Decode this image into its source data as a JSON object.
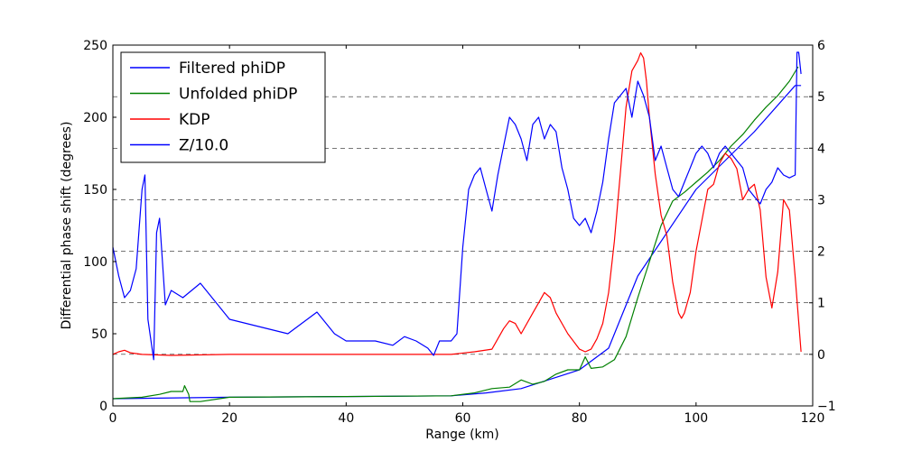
{
  "chart_data": {
    "type": "line",
    "xlabel": "Range (km)",
    "ylabel": "Differential phase shift (degrees)",
    "xlim": [
      0,
      120
    ],
    "ylim": [
      0,
      250
    ],
    "y2lim": [
      -1,
      6
    ],
    "xticks": [
      "0",
      "20",
      "40",
      "60",
      "80",
      "100",
      "120"
    ],
    "yticks": [
      "0",
      "50",
      "100",
      "150",
      "200",
      "250"
    ],
    "y2ticks": [
      "−1",
      "0",
      "1",
      "2",
      "3",
      "4",
      "5",
      "6"
    ],
    "grid": "horizontal dashed lines at right-axis ticks",
    "legend_position": "top-left",
    "legend": [
      "Filtered phiDP",
      "Unfolded phiDP",
      "KDP",
      "Z/10.0"
    ],
    "series": [
      {
        "name": "Filtered phiDP",
        "axis": "left",
        "color": "#0000ff",
        "x": [
          0,
          20,
          40,
          58,
          64,
          70,
          80,
          85,
          90,
          100,
          110,
          117,
          117.5,
          118
        ],
        "y": [
          5,
          6,
          6.5,
          7,
          9,
          12,
          25,
          40,
          90,
          150,
          190,
          222,
          222,
          222
        ]
      },
      {
        "name": "Unfolded phiDP",
        "axis": "left",
        "color": "#008000",
        "x": [
          0,
          5,
          8,
          10,
          12,
          12.3,
          13,
          13.2,
          15,
          20,
          40,
          58,
          62,
          65,
          68,
          70,
          72,
          74,
          76,
          78,
          80,
          81,
          82,
          84,
          86,
          88,
          90,
          92,
          94,
          96,
          98,
          100,
          102,
          104,
          106,
          108,
          110,
          112,
          114,
          116,
          117.5
        ],
        "y": [
          5,
          6,
          8,
          10,
          10,
          14,
          8,
          3,
          3,
          6,
          6.5,
          7,
          9,
          12,
          13,
          18,
          15,
          17,
          22,
          25,
          25,
          34,
          26,
          27,
          32,
          48,
          75,
          100,
          125,
          142,
          148,
          155,
          162,
          170,
          180,
          188,
          198,
          207,
          215,
          225,
          235
        ]
      },
      {
        "name": "KDP",
        "axis": "right",
        "color": "#ff0000",
        "x": [
          0,
          1,
          2,
          3,
          5,
          10,
          20,
          40,
          58,
          62,
          65,
          67,
          68,
          69,
          70,
          72,
          73,
          74,
          75,
          76,
          78,
          80,
          81,
          82,
          83,
          84,
          85,
          86,
          87,
          88,
          89,
          90,
          90.5,
          91,
          91.5,
          92,
          93,
          94,
          95,
          96,
          97,
          97.5,
          98,
          99,
          100,
          101,
          102,
          103,
          104,
          105,
          106,
          107,
          108,
          109,
          110,
          111,
          112,
          113,
          114,
          115,
          116,
          117,
          118
        ],
        "y": [
          0,
          0.05,
          0.08,
          0.03,
          0,
          -0.02,
          0,
          0,
          0,
          0.05,
          0.1,
          0.5,
          0.65,
          0.6,
          0.4,
          0.8,
          1.0,
          1.2,
          1.1,
          0.8,
          0.4,
          0.1,
          0.05,
          0.1,
          0.3,
          0.6,
          1.2,
          2.2,
          3.5,
          4.8,
          5.5,
          5.7,
          5.85,
          5.75,
          5.3,
          4.6,
          3.5,
          2.7,
          2.3,
          1.4,
          0.8,
          0.7,
          0.8,
          1.2,
          2.0,
          2.6,
          3.2,
          3.3,
          3.7,
          3.9,
          3.8,
          3.6,
          3.0,
          3.2,
          3.3,
          2.8,
          1.5,
          0.9,
          1.6,
          3.0,
          2.8,
          1.5,
          0.05
        ]
      },
      {
        "name": "Z/10.0",
        "axis": "left",
        "color": "#0000ff",
        "x": [
          0,
          1,
          2,
          3,
          4,
          5,
          5.5,
          6,
          7,
          7.5,
          8,
          9,
          10,
          12,
          15,
          18,
          20,
          25,
          30,
          35,
          38,
          40,
          45,
          48,
          50,
          52,
          54,
          55,
          56,
          58,
          59,
          60,
          61,
          62,
          63,
          64,
          65,
          66,
          67,
          68,
          69,
          70,
          71,
          72,
          73,
          74,
          75,
          76,
          77,
          78,
          79,
          80,
          81,
          82,
          83,
          84,
          85,
          86,
          87,
          88,
          89,
          90,
          91,
          92,
          93,
          94,
          95,
          96,
          97,
          98,
          99,
          100,
          101,
          102,
          103,
          104,
          105,
          106,
          107,
          108,
          109,
          110,
          111,
          112,
          113,
          114,
          115,
          116,
          117,
          117.3,
          117.6,
          118
        ],
        "y": [
          110,
          90,
          75,
          80,
          95,
          150,
          160,
          60,
          32,
          120,
          130,
          70,
          80,
          75,
          85,
          70,
          60,
          55,
          50,
          65,
          50,
          45,
          45,
          42,
          48,
          45,
          40,
          35,
          45,
          45,
          50,
          110,
          150,
          160,
          165,
          150,
          135,
          160,
          180,
          200,
          195,
          185,
          170,
          195,
          200,
          185,
          195,
          190,
          165,
          150,
          130,
          125,
          130,
          120,
          135,
          155,
          185,
          210,
          215,
          220,
          200,
          225,
          215,
          200,
          170,
          180,
          165,
          150,
          145,
          155,
          165,
          175,
          180,
          175,
          165,
          175,
          180,
          175,
          170,
          165,
          150,
          145,
          140,
          150,
          155,
          165,
          160,
          158,
          160,
          245,
          245,
          230
        ]
      }
    ]
  }
}
